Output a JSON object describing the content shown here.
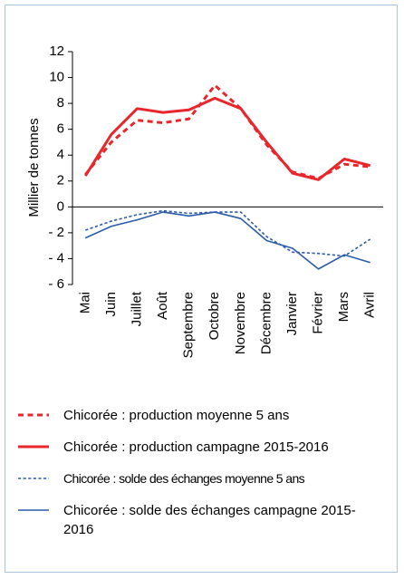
{
  "chart_data": {
    "type": "line",
    "y_label": "Millier de tonnes",
    "categories": [
      "Mai",
      "Juin",
      "Juillet",
      "Août",
      "Septembre",
      "Octobre",
      "Novembre",
      "Décembre",
      "Janvier",
      "Février",
      "Mars",
      "Avril"
    ],
    "ylim": [
      -6,
      12
    ],
    "yticks": [
      12,
      10,
      8,
      6,
      4,
      2,
      0,
      {
        "value": -2,
        "label": "- 2"
      },
      {
        "value": -4,
        "label": "- 4"
      },
      {
        "value": -6,
        "label": "- 6"
      }
    ],
    "series": [
      {
        "name": "Chicorée : production moyenne 5 ans",
        "color": "#e8262b",
        "line_style": "dashed",
        "width": 3,
        "values": [
          2.5,
          5.0,
          6.7,
          6.5,
          6.8,
          9.4,
          7.6,
          4.8,
          2.7,
          2.2,
          3.3,
          3.1
        ]
      },
      {
        "name": "Chicorée : production campagne 2015-2016",
        "color": "#e8262b",
        "line_style": "solid",
        "width": 3,
        "values": [
          2.4,
          5.6,
          7.6,
          7.3,
          7.5,
          8.4,
          7.6,
          5.0,
          2.6,
          2.1,
          3.7,
          3.2
        ]
      },
      {
        "name": "Chicorée : solde des échanges moyenne 5 ans",
        "color": "#2b5ba8",
        "line_style": "dashed",
        "width": 1.6,
        "values": [
          -1.8,
          -1.1,
          -0.6,
          -0.3,
          -0.5,
          -0.4,
          -0.4,
          -2.3,
          -3.5,
          -3.6,
          -3.8,
          -2.5
        ]
      },
      {
        "name": "Chicorée : solde des échanges campagne 2015-2016",
        "color": "#2b5ba8",
        "line_style": "solid",
        "width": 1.6,
        "values": [
          -2.4,
          -1.5,
          -1.0,
          -0.4,
          -0.7,
          -0.4,
          -0.9,
          -2.6,
          -3.2,
          -4.8,
          -3.7,
          -4.3
        ]
      }
    ]
  }
}
